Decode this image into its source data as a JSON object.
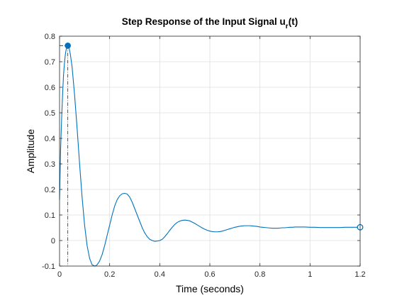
{
  "chart_data": {
    "type": "line",
    "title": {
      "main": "Step Response of the Input Signal u",
      "sub": "r",
      "suffix": "(t)"
    },
    "xlabel": "Time (seconds)",
    "ylabel": "Amplitude",
    "xlim": [
      0,
      1.2
    ],
    "ylim": [
      -0.1,
      0.8
    ],
    "xticks": [
      0,
      0.2,
      0.4,
      0.6,
      0.8,
      1,
      1.2
    ],
    "xtick_labels": [
      "0",
      "0.2",
      "0.4",
      "0.6",
      "0.8",
      "1",
      "1.2"
    ],
    "yticks": [
      -0.1,
      0,
      0.1,
      0.2,
      0.3,
      0.4,
      0.5,
      0.6,
      0.7,
      0.8
    ],
    "ytick_labels": [
      "-0.1",
      "0",
      "0.1",
      "0.2",
      "0.3",
      "0.4",
      "0.5",
      "0.6",
      "0.7",
      "0.8"
    ],
    "grid": true,
    "series": [
      {
        "color": "#0072BD",
        "points": [
          [
            0,
            0.16
          ],
          [
            0.004,
            0.35
          ],
          [
            0.008,
            0.47
          ],
          [
            0.012,
            0.57
          ],
          [
            0.016,
            0.65
          ],
          [
            0.02,
            0.7
          ],
          [
            0.024,
            0.735
          ],
          [
            0.028,
            0.755
          ],
          [
            0.033,
            0.763
          ],
          [
            0.038,
            0.755
          ],
          [
            0.043,
            0.73
          ],
          [
            0.05,
            0.68
          ],
          [
            0.06,
            0.57
          ],
          [
            0.07,
            0.44
          ],
          [
            0.08,
            0.3
          ],
          [
            0.09,
            0.17
          ],
          [
            0.1,
            0.06
          ],
          [
            0.11,
            -0.02
          ],
          [
            0.12,
            -0.07
          ],
          [
            0.13,
            -0.095
          ],
          [
            0.142,
            -0.1
          ],
          [
            0.15,
            -0.095
          ],
          [
            0.16,
            -0.08
          ],
          [
            0.17,
            -0.055
          ],
          [
            0.18,
            -0.02
          ],
          [
            0.19,
            0.02
          ],
          [
            0.2,
            0.06
          ],
          [
            0.21,
            0.1
          ],
          [
            0.22,
            0.135
          ],
          [
            0.23,
            0.16
          ],
          [
            0.24,
            0.175
          ],
          [
            0.25,
            0.183
          ],
          [
            0.26,
            0.185
          ],
          [
            0.27,
            0.182
          ],
          [
            0.28,
            0.17
          ],
          [
            0.29,
            0.15
          ],
          [
            0.3,
            0.125
          ],
          [
            0.31,
            0.1
          ],
          [
            0.32,
            0.075
          ],
          [
            0.33,
            0.05
          ],
          [
            0.34,
            0.03
          ],
          [
            0.35,
            0.015
          ],
          [
            0.36,
            0.005
          ],
          [
            0.37,
            0.0
          ],
          [
            0.38,
            -0.003
          ],
          [
            0.39,
            -0.002
          ],
          [
            0.4,
            0.0
          ],
          [
            0.41,
            0.005
          ],
          [
            0.42,
            0.015
          ],
          [
            0.43,
            0.027
          ],
          [
            0.44,
            0.04
          ],
          [
            0.45,
            0.052
          ],
          [
            0.46,
            0.063
          ],
          [
            0.47,
            0.071
          ],
          [
            0.48,
            0.076
          ],
          [
            0.49,
            0.079
          ],
          [
            0.5,
            0.08
          ],
          [
            0.51,
            0.079
          ],
          [
            0.52,
            0.077
          ],
          [
            0.53,
            0.072
          ],
          [
            0.54,
            0.067
          ],
          [
            0.55,
            0.061
          ],
          [
            0.56,
            0.055
          ],
          [
            0.57,
            0.049
          ],
          [
            0.58,
            0.044
          ],
          [
            0.59,
            0.04
          ],
          [
            0.6,
            0.037
          ],
          [
            0.61,
            0.035
          ],
          [
            0.62,
            0.034
          ],
          [
            0.63,
            0.034
          ],
          [
            0.64,
            0.035
          ],
          [
            0.65,
            0.037
          ],
          [
            0.66,
            0.04
          ],
          [
            0.67,
            0.043
          ],
          [
            0.68,
            0.046
          ],
          [
            0.69,
            0.049
          ],
          [
            0.7,
            0.052
          ],
          [
            0.71,
            0.054
          ],
          [
            0.72,
            0.056
          ],
          [
            0.73,
            0.057
          ],
          [
            0.74,
            0.058
          ],
          [
            0.75,
            0.058
          ],
          [
            0.76,
            0.058
          ],
          [
            0.77,
            0.057
          ],
          [
            0.78,
            0.056
          ],
          [
            0.79,
            0.055
          ],
          [
            0.8,
            0.053
          ],
          [
            0.81,
            0.052
          ],
          [
            0.82,
            0.051
          ],
          [
            0.83,
            0.05
          ],
          [
            0.84,
            0.049
          ],
          [
            0.85,
            0.048
          ],
          [
            0.86,
            0.048
          ],
          [
            0.87,
            0.048
          ],
          [
            0.88,
            0.049
          ],
          [
            0.89,
            0.05
          ],
          [
            0.9,
            0.05
          ],
          [
            0.91,
            0.051
          ],
          [
            0.92,
            0.052
          ],
          [
            0.93,
            0.052
          ],
          [
            0.94,
            0.053
          ],
          [
            0.95,
            0.053
          ],
          [
            0.96,
            0.053
          ],
          [
            0.97,
            0.053
          ],
          [
            0.98,
            0.053
          ],
          [
            1.0,
            0.052
          ],
          [
            1.02,
            0.052
          ],
          [
            1.04,
            0.051
          ],
          [
            1.06,
            0.051
          ],
          [
            1.08,
            0.051
          ],
          [
            1.1,
            0.051
          ],
          [
            1.12,
            0.051
          ],
          [
            1.14,
            0.052
          ],
          [
            1.16,
            0.052
          ],
          [
            1.18,
            0.052
          ],
          [
            1.2,
            0.052
          ]
        ]
      }
    ],
    "peak_marker": {
      "x": 0.033,
      "y": 0.763
    },
    "steady_state_marker": {
      "x": 1.2,
      "y": 0.052
    }
  }
}
